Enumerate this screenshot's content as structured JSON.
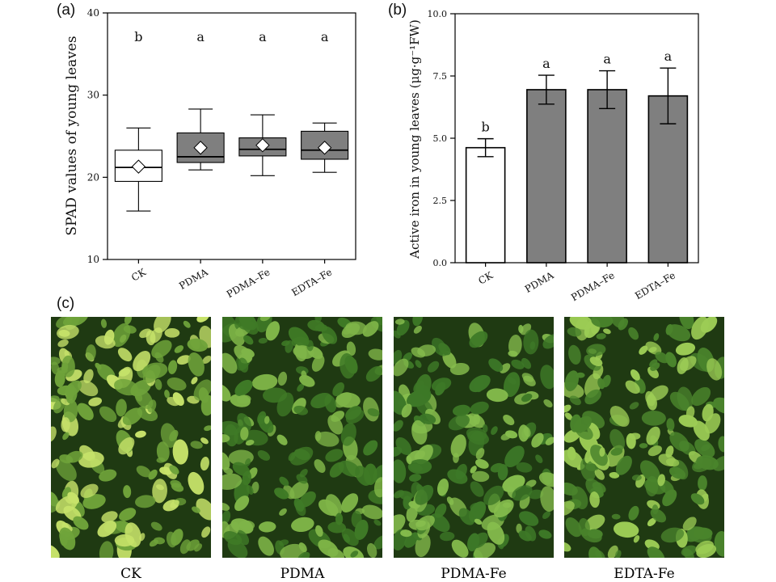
{
  "panel_labels": {
    "a": "(a)",
    "b": "(b)",
    "c": "(c)"
  },
  "chart_data": [
    {
      "type": "box",
      "panel": "(a)",
      "ylabel": "SPAD values of young leaves",
      "xlabel": "",
      "ylim": [
        10,
        40
      ],
      "yticks": [
        "10",
        "20",
        "30",
        "40"
      ],
      "categories": [
        "CK",
        "PDMA",
        "PDMA–Fe",
        "EDTA–Fe"
      ],
      "boxes": [
        {
          "min": 15.9,
          "q1": 19.5,
          "median": 21.2,
          "q3": 23.3,
          "max": 26.0,
          "mean": 21.3,
          "fill": "#ffffff"
        },
        {
          "min": 20.9,
          "q1": 21.8,
          "median": 22.5,
          "q3": 25.4,
          "max": 28.3,
          "mean": 23.6,
          "fill": "#7f7f7f"
        },
        {
          "min": 20.2,
          "q1": 22.6,
          "median": 23.4,
          "q3": 24.8,
          "max": 27.6,
          "mean": 23.9,
          "fill": "#7f7f7f"
        },
        {
          "min": 20.6,
          "q1": 22.2,
          "median": 23.3,
          "q3": 25.6,
          "max": 26.6,
          "mean": 23.6,
          "fill": "#7f7f7f"
        }
      ],
      "significance": [
        "b",
        "a",
        "a",
        "a"
      ]
    },
    {
      "type": "bar",
      "panel": "(b)",
      "ylabel": "Active iron in young leaves (μg·g⁻¹FW)",
      "xlabel": "",
      "ylim": [
        0,
        10
      ],
      "yticks": [
        "0.0",
        "2.5",
        "5.0",
        "7.5",
        "10.0"
      ],
      "categories": [
        "CK",
        "PDMA",
        "PDMA–Fe",
        "EDTA–Fe"
      ],
      "values": [
        4.62,
        6.95,
        6.95,
        6.7
      ],
      "errors": [
        0.36,
        0.58,
        0.76,
        1.12
      ],
      "fills": [
        "#ffffff",
        "#7f7f7f",
        "#7f7f7f",
        "#7f7f7f"
      ],
      "significance": [
        "b",
        "a",
        "a",
        "a"
      ]
    }
  ],
  "photos": [
    {
      "label": "CK",
      "base": "#6fa33a",
      "accent": "#c7e36a"
    },
    {
      "label": "PDMA",
      "base": "#3f7a26",
      "accent": "#7fb548"
    },
    {
      "label": "PDMA-Fe",
      "base": "#3d7827",
      "accent": "#86bd4d"
    },
    {
      "label": "EDTA-Fe",
      "base": "#4a842c",
      "accent": "#9ccc55"
    }
  ]
}
